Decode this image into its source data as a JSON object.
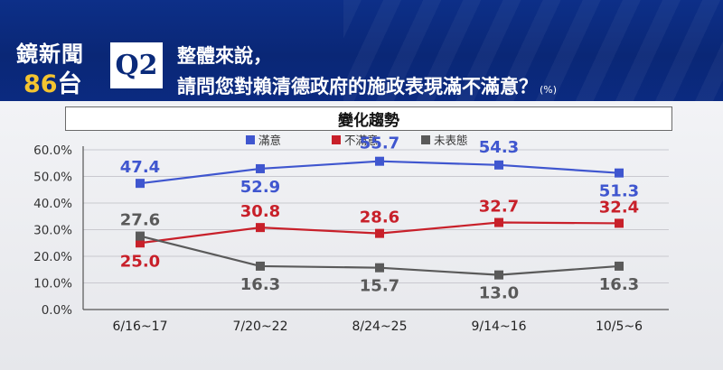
{
  "header": {
    "brand_line1": "鏡新聞",
    "brand_number": "86",
    "brand_suffix": "台",
    "question_badge": "Q2",
    "question_line1": "整體來說，",
    "question_line2": "請問您對賴清德政府的施政表現滿不滿意？",
    "question_unit": "(%)"
  },
  "colors": {
    "header_bg": "#0b2a80",
    "satisfied": "#3f56cf",
    "dissatisfied": "#c8202a",
    "no_opinion": "#5a5a5a"
  },
  "chart_data": {
    "type": "line",
    "title": "變化趨勢",
    "categories": [
      "6/16~17",
      "7/20~22",
      "8/24~25",
      "9/14~16",
      "10/5~6"
    ],
    "y_ticks": [
      "60.0%",
      "50.0%",
      "40.0%",
      "30.0%",
      "20.0%",
      "10.0%",
      "0.0%"
    ],
    "ylim": [
      0,
      60
    ],
    "grid": true,
    "legend_position": "top",
    "series": [
      {
        "name": "滿意",
        "values": [
          47.4,
          52.9,
          55.7,
          54.3,
          51.3
        ],
        "labels": [
          "47.4",
          "52.9",
          "55.7",
          "54.3",
          "51.3"
        ],
        "color": "#3f56cf"
      },
      {
        "name": "不滿意",
        "values": [
          25.0,
          30.8,
          28.6,
          32.7,
          32.4
        ],
        "labels": [
          "25.0",
          "30.8",
          "28.6",
          "32.7",
          "32.4"
        ],
        "color": "#c8202a"
      },
      {
        "name": "未表態",
        "values": [
          27.6,
          16.3,
          15.7,
          13.0,
          16.3
        ],
        "labels": [
          "27.6",
          "16.3",
          "15.7",
          "13.0",
          "16.3"
        ],
        "color": "#5a5a5a"
      }
    ]
  }
}
